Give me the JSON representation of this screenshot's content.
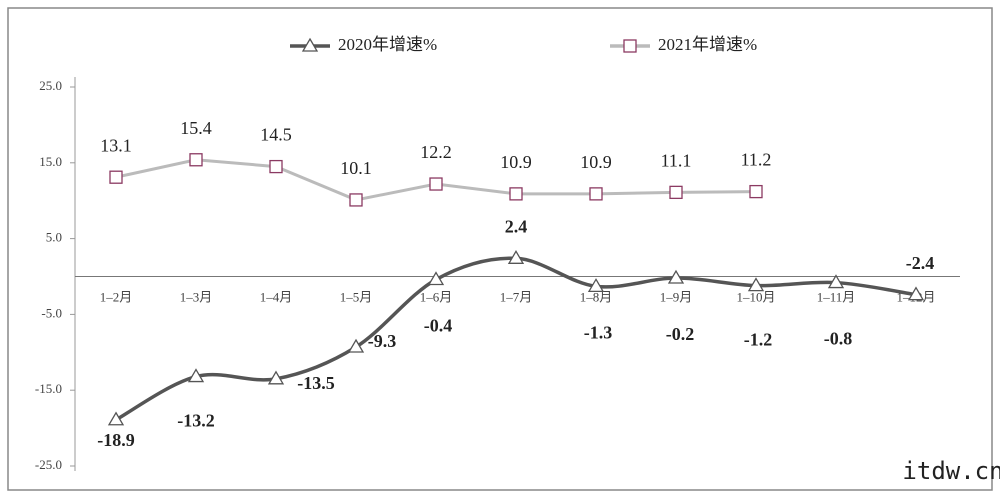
{
  "chart_data": {
    "type": "line",
    "categories": [
      "1–2月",
      "1–3月",
      "1–4月",
      "1–5月",
      "1–6月",
      "1–7月",
      "1–8月",
      "1–9月",
      "1–10月",
      "1–11月",
      "1–12月"
    ],
    "series": [
      {
        "name": "2020年增速%",
        "color": "#555555",
        "marker": "triangle",
        "values": [
          -18.9,
          -13.2,
          -13.5,
          -9.3,
          -0.4,
          2.4,
          -1.3,
          -0.2,
          -1.2,
          -0.8,
          -2.4
        ]
      },
      {
        "name": "2021年增速%",
        "color": "#bbbbbb",
        "marker_color": "#8b3a62",
        "marker": "square",
        "values": [
          13.1,
          15.4,
          14.5,
          10.1,
          12.2,
          10.9,
          10.9,
          11.1,
          11.2,
          null,
          null
        ]
      }
    ],
    "ylim": [
      -25,
      25
    ],
    "yticks": [
      {
        "value": 25,
        "label": "25.0"
      },
      {
        "value": 15,
        "label": "15.0"
      },
      {
        "value": 5,
        "label": "5.0"
      },
      {
        "value": -5,
        "label": "-5.0"
      },
      {
        "value": -15,
        "label": "-15.0"
      },
      {
        "value": -25,
        "label": "-25.0"
      }
    ],
    "legend": "top",
    "watermark": "itdw.cn"
  }
}
